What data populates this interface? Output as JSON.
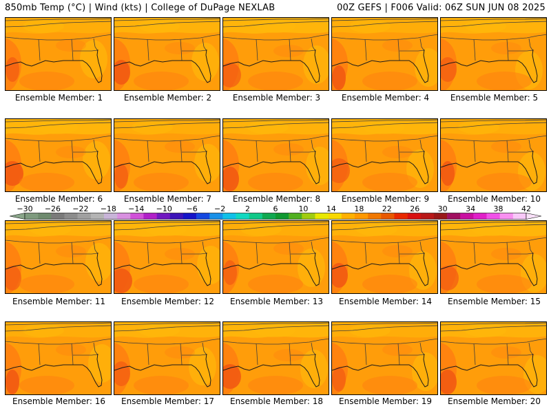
{
  "header": {
    "left": "850mb Temp (°C) | Wind (kts) | College of DuPage NEXLAB",
    "right": "00Z GEFS | F006 Valid: 06Z SUN JUN 08 2025"
  },
  "caption_prefix": "Ensemble Member:",
  "members": [
    "1",
    "2",
    "3",
    "4",
    "5",
    "6",
    "7",
    "8",
    "9",
    "10",
    "11",
    "12",
    "13",
    "14",
    "15",
    "16",
    "17",
    "18",
    "19",
    "20"
  ],
  "colorbar": {
    "tick_labels": [
      "−30",
      "−26",
      "−22",
      "−18",
      "−14",
      "−10",
      "−6",
      "−2",
      "2",
      "6",
      "10",
      "14",
      "18",
      "22",
      "26",
      "30",
      "34",
      "38",
      "42"
    ],
    "range": [
      -30,
      42
    ],
    "colors": [
      "#7e9a7e",
      "#6e8a6e",
      "#7a7a7a",
      "#8c8c8c",
      "#a0a0a0",
      "#b4b4b4",
      "#c8b4d8",
      "#d890e0",
      "#d050d8",
      "#b020c8",
      "#7018c0",
      "#3c14b8",
      "#1414c8",
      "#1448e0",
      "#1890e8",
      "#10c0e8",
      "#10d8c0",
      "#10c888",
      "#10a850",
      "#109830",
      "#50b020",
      "#a0cc10",
      "#e8e800",
      "#f8d800",
      "#ffb000",
      "#ff9800",
      "#f07800",
      "#e85800",
      "#e82800",
      "#d81010",
      "#b81818",
      "#981818",
      "#a01060",
      "#c810a0",
      "#e020c8",
      "#f050e8",
      "#f890f0",
      "#f8c8f8"
    ]
  },
  "map": {
    "colors": {
      "base": "#ff9d0a",
      "warm": "#ff7f10",
      "hot": "#f25a12",
      "cool": "#ffba0a",
      "border": "#3c3c3c"
    }
  }
}
